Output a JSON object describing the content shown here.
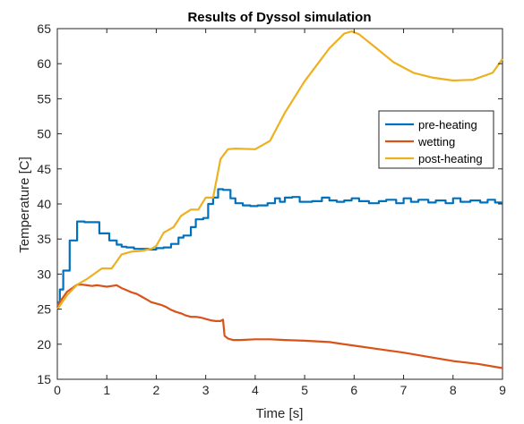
{
  "chart_data": {
    "type": "line",
    "title": "Results of Dyssol simulation",
    "xlabel": "Time [s]",
    "ylabel": "Temperature [C]",
    "xlim": [
      0,
      9
    ],
    "ylim": [
      15,
      65
    ],
    "xticks": [
      "0",
      "1",
      "2",
      "3",
      "4",
      "5",
      "6",
      "7",
      "8",
      "9"
    ],
    "yticks": [
      "15",
      "20",
      "25",
      "30",
      "35",
      "40",
      "45",
      "50",
      "55",
      "60",
      "65"
    ],
    "legend_position": "right",
    "grid": false,
    "series": [
      {
        "name": "pre-heating",
        "color": "#0072BD",
        "x": [
          0,
          0.05,
          0.05,
          0.12,
          0.12,
          0.25,
          0.25,
          0.4,
          0.4,
          0.55,
          0.55,
          0.85,
          0.85,
          1.05,
          1.05,
          1.2,
          1.2,
          1.3,
          1.3,
          1.4,
          1.4,
          1.55,
          1.55,
          1.7,
          1.7,
          1.85,
          1.85,
          2.0,
          2.0,
          2.15,
          2.15,
          2.3,
          2.3,
          2.45,
          2.45,
          2.55,
          2.55,
          2.7,
          2.7,
          2.8,
          2.8,
          2.95,
          2.95,
          3.05,
          3.05,
          3.15,
          3.15,
          3.25,
          3.25,
          3.35,
          3.35,
          3.5,
          3.5,
          3.6,
          3.6,
          3.75,
          3.75,
          3.9,
          3.9,
          4.05,
          4.05,
          4.25,
          4.25,
          4.4,
          4.4,
          4.5,
          4.5,
          4.6,
          4.6,
          4.75,
          4.75,
          4.9,
          4.9,
          5.15,
          5.15,
          5.35,
          5.35,
          5.5,
          5.5,
          5.65,
          5.65,
          5.8,
          5.8,
          5.95,
          5.95,
          6.1,
          6.1,
          6.3,
          6.3,
          6.5,
          6.5,
          6.65,
          6.65,
          6.85,
          6.85,
          7.0,
          7.0,
          7.15,
          7.15,
          7.3,
          7.3,
          7.5,
          7.5,
          7.65,
          7.65,
          7.85,
          7.85,
          8.0,
          8.0,
          8.15,
          8.15,
          8.35,
          8.35,
          8.55,
          8.55,
          8.7,
          8.7,
          8.85,
          8.85,
          9.0
        ],
        "values": [
          26.0,
          26.0,
          27.8,
          27.8,
          30.5,
          30.5,
          34.8,
          34.8,
          37.5,
          37.5,
          37.4,
          37.4,
          35.8,
          35.8,
          34.8,
          34.8,
          34.2,
          34.2,
          33.9,
          33.9,
          33.8,
          33.8,
          33.6,
          33.6,
          33.6,
          33.6,
          33.5,
          33.5,
          33.7,
          33.7,
          33.8,
          33.8,
          34.3,
          34.3,
          35.2,
          35.2,
          35.5,
          35.5,
          36.7,
          36.7,
          37.8,
          37.8,
          38.0,
          38.0,
          40.0,
          40.0,
          40.9,
          40.9,
          42.1,
          42.1,
          42.0,
          42.0,
          40.8,
          40.8,
          40.1,
          40.1,
          39.8,
          39.8,
          39.7,
          39.7,
          39.8,
          39.8,
          40.1,
          40.1,
          40.8,
          40.8,
          40.3,
          40.3,
          40.9,
          40.9,
          41.0,
          41.0,
          40.3,
          40.3,
          40.4,
          40.4,
          40.9,
          40.9,
          40.5,
          40.5,
          40.3,
          40.3,
          40.5,
          40.5,
          40.8,
          40.8,
          40.4,
          40.4,
          40.1,
          40.1,
          40.4,
          40.4,
          40.6,
          40.6,
          40.1,
          40.1,
          40.8,
          40.8,
          40.3,
          40.3,
          40.6,
          40.6,
          40.2,
          40.2,
          40.5,
          40.5,
          40.1,
          40.1,
          40.8,
          40.8,
          40.3,
          40.3,
          40.5,
          40.5,
          40.2,
          40.2,
          40.6,
          40.6,
          40.2,
          40.2
        ]
      },
      {
        "name": "wetting",
        "color": "#D95319",
        "x": [
          0,
          0.1,
          0.2,
          0.3,
          0.4,
          0.5,
          0.6,
          0.7,
          0.8,
          0.9,
          1.0,
          1.1,
          1.2,
          1.3,
          1.4,
          1.5,
          1.6,
          1.7,
          1.8,
          1.9,
          2.0,
          2.1,
          2.2,
          2.3,
          2.4,
          2.5,
          2.6,
          2.7,
          2.8,
          2.9,
          3.0,
          3.1,
          3.2,
          3.3,
          3.35,
          3.38,
          3.45,
          3.55,
          3.7,
          4.0,
          4.3,
          4.6,
          5.0,
          5.5,
          6.0,
          6.5,
          7.0,
          7.5,
          8.0,
          8.5,
          9.0
        ],
        "values": [
          25.5,
          26.5,
          27.5,
          28.0,
          28.5,
          28.5,
          28.4,
          28.3,
          28.4,
          28.3,
          28.2,
          28.3,
          28.4,
          28.0,
          27.7,
          27.4,
          27.2,
          26.8,
          26.4,
          26.0,
          25.8,
          25.6,
          25.3,
          24.9,
          24.6,
          24.4,
          24.1,
          23.9,
          23.9,
          23.8,
          23.6,
          23.4,
          23.3,
          23.3,
          23.5,
          21.2,
          20.8,
          20.6,
          20.6,
          20.7,
          20.7,
          20.6,
          20.5,
          20.3,
          19.8,
          19.3,
          18.8,
          18.2,
          17.6,
          17.2,
          16.6
        ]
      },
      {
        "name": "post-heating",
        "color": "#EDB120",
        "x": [
          0,
          0.2,
          0.4,
          0.6,
          0.8,
          0.9,
          1.1,
          1.3,
          1.5,
          1.7,
          1.9,
          2.0,
          2.15,
          2.35,
          2.5,
          2.7,
          2.85,
          3.0,
          3.15,
          3.3,
          3.45,
          3.6,
          4.0,
          4.3,
          4.6,
          5.0,
          5.5,
          5.8,
          5.95,
          6.1,
          6.4,
          6.8,
          7.2,
          7.6,
          8.0,
          8.4,
          8.8,
          9.0
        ],
        "values": [
          25.0,
          27.0,
          28.5,
          29.3,
          30.3,
          30.8,
          30.8,
          32.8,
          33.2,
          33.3,
          33.6,
          34.0,
          35.9,
          36.7,
          38.3,
          39.2,
          39.2,
          40.9,
          40.9,
          46.4,
          47.8,
          47.9,
          47.8,
          49.0,
          53.0,
          57.5,
          62.2,
          64.3,
          64.6,
          64.2,
          62.5,
          60.2,
          58.7,
          58.0,
          57.6,
          57.7,
          58.7,
          60.7
        ]
      }
    ]
  }
}
